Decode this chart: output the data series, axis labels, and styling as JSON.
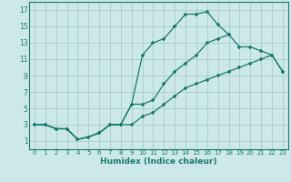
{
  "xlabel": "Humidex (Indice chaleur)",
  "bg_color": "#cce8e8",
  "grid_color": "#aacccc",
  "line_color": "#1a7a6e",
  "xlim": [
    -0.5,
    23.5
  ],
  "ylim": [
    0,
    18
  ],
  "xticks": [
    0,
    1,
    2,
    3,
    4,
    5,
    6,
    7,
    8,
    9,
    10,
    11,
    12,
    13,
    14,
    15,
    16,
    17,
    18,
    19,
    20,
    21,
    22,
    23
  ],
  "yticks": [
    1,
    3,
    5,
    7,
    9,
    11,
    13,
    15,
    17
  ],
  "series": [
    {
      "x": [
        0,
        1,
        2,
        3,
        4,
        5,
        6,
        7,
        8,
        9,
        10,
        11,
        12,
        13,
        14,
        15,
        16,
        17,
        18
      ],
      "y": [
        3,
        3,
        2.5,
        2.5,
        1.2,
        1.5,
        2.0,
        3.0,
        3.0,
        5.5,
        11.5,
        13.0,
        13.5,
        15.0,
        16.5,
        16.5,
        16.8,
        15.2,
        14.0
      ]
    },
    {
      "x": [
        0,
        1,
        2,
        3,
        4,
        5,
        6,
        7,
        8,
        9,
        10,
        11,
        12,
        13,
        14,
        15,
        16,
        17,
        18,
        19,
        20,
        21,
        22,
        23
      ],
      "y": [
        3,
        3,
        2.5,
        2.5,
        1.2,
        1.5,
        2.0,
        3.0,
        3.0,
        5.5,
        5.5,
        6.0,
        8.0,
        9.5,
        10.5,
        11.5,
        13.0,
        13.5,
        14.0,
        12.5,
        12.5,
        12.0,
        11.5,
        9.5
      ]
    },
    {
      "x": [
        0,
        1,
        2,
        3,
        4,
        5,
        6,
        7,
        8,
        9,
        10,
        11,
        12,
        13,
        14,
        15,
        16,
        17,
        18,
        19,
        20,
        21,
        22,
        23
      ],
      "y": [
        3,
        3,
        2.5,
        2.5,
        1.2,
        1.5,
        2.0,
        3.0,
        3.0,
        3.0,
        4.0,
        4.5,
        5.5,
        6.5,
        7.5,
        8.0,
        8.5,
        9.0,
        9.5,
        10.0,
        10.5,
        11.0,
        11.5,
        9.5
      ]
    }
  ]
}
